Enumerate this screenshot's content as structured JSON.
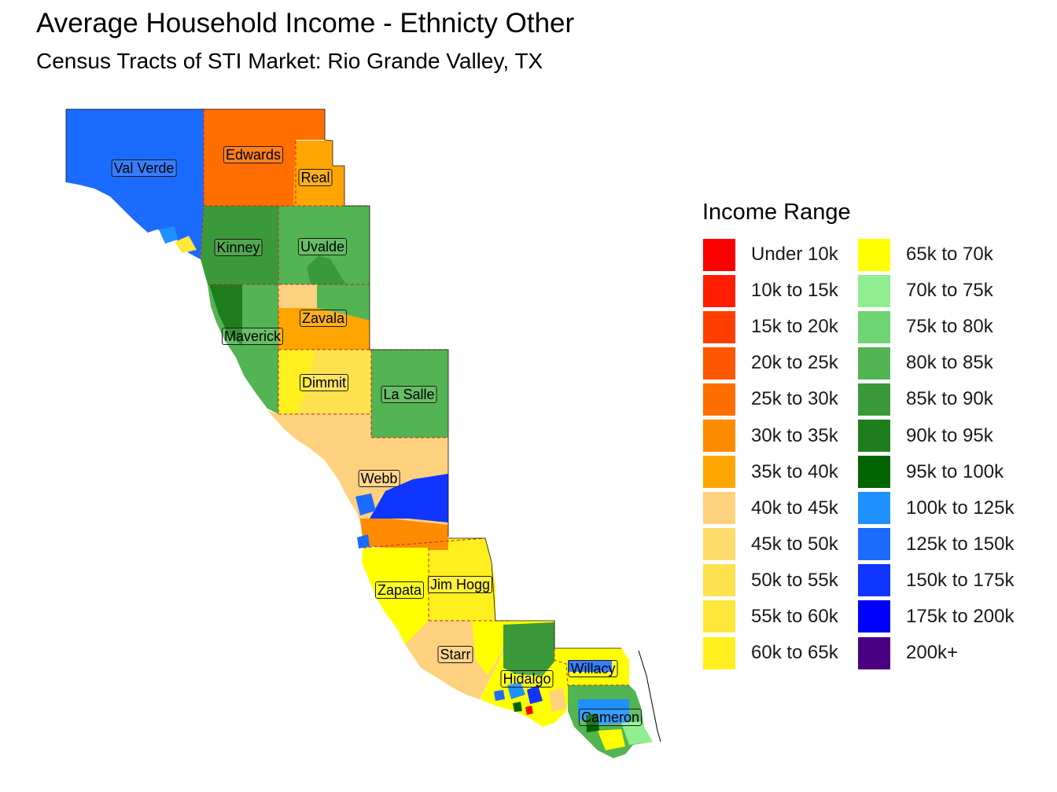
{
  "title": "Average Household Income - Ethnicty Other",
  "subtitle": "Census Tracts of STI Market: Rio Grande Valley, TX",
  "legend": {
    "title": "Income Range",
    "items": [
      {
        "label": "Under 10k",
        "color": "#FF0000"
      },
      {
        "label": "10k to 15k",
        "color": "#FF1F00"
      },
      {
        "label": "15k to 20k",
        "color": "#FF3F00"
      },
      {
        "label": "20k to 25k",
        "color": "#FF5600"
      },
      {
        "label": "25k to 30k",
        "color": "#FF6F00"
      },
      {
        "label": "30k to 35k",
        "color": "#FF8C00"
      },
      {
        "label": "35k to 40k",
        "color": "#FFA500"
      },
      {
        "label": "40k to 45k",
        "color": "#FED17F"
      },
      {
        "label": "45k to 50k",
        "color": "#FEDC6C"
      },
      {
        "label": "50k to 55k",
        "color": "#FEE14E"
      },
      {
        "label": "55k to 60k",
        "color": "#FFE63A"
      },
      {
        "label": "60k to 65k",
        "color": "#FFEF1F"
      },
      {
        "label": "65k to 70k",
        "color": "#FFFF00"
      },
      {
        "label": "70k to 75k",
        "color": "#90EE90"
      },
      {
        "label": "75k to 80k",
        "color": "#6FD472"
      },
      {
        "label": "80k to 85k",
        "color": "#52B452"
      },
      {
        "label": "85k to 90k",
        "color": "#3A9A3A"
      },
      {
        "label": "90k to 95k",
        "color": "#1E7E1E"
      },
      {
        "label": "95k to 100k",
        "color": "#006400"
      },
      {
        "label": "100k to 125k",
        "color": "#1E90FF"
      },
      {
        "label": "125k to 150k",
        "color": "#1C6BFF"
      },
      {
        "label": "150k to 175k",
        "color": "#1035FF"
      },
      {
        "label": "175k to 200k",
        "color": "#0000FF"
      },
      {
        "label": "200k+",
        "color": "#4B0082"
      }
    ]
  },
  "counties": [
    {
      "id": "val-verde",
      "name": "Val Verde",
      "income": "125k to 150k"
    },
    {
      "id": "edwards",
      "name": "Edwards",
      "income": "25k to 30k"
    },
    {
      "id": "real",
      "name": "Real",
      "income": "35k to 40k"
    },
    {
      "id": "kinney",
      "name": "Kinney",
      "income": "85k to 90k"
    },
    {
      "id": "uvalde",
      "name": "Uvalde",
      "income": "80k to 85k"
    },
    {
      "id": "maverick",
      "name": "Maverick",
      "income": "80k to 85k"
    },
    {
      "id": "zavala",
      "name": "Zavala",
      "income": "35k to 40k"
    },
    {
      "id": "dimmit",
      "name": "Dimmit",
      "income": "60k to 65k"
    },
    {
      "id": "la-salle",
      "name": "La Salle",
      "income": "80k to 85k"
    },
    {
      "id": "webb",
      "name": "Webb",
      "income": "40k to 45k"
    },
    {
      "id": "zapata",
      "name": "Zapata",
      "income": "65k to 70k"
    },
    {
      "id": "jim-hogg",
      "name": "Jim Hogg",
      "income": "60k to 65k"
    },
    {
      "id": "starr",
      "name": "Starr",
      "income": "40k to 45k"
    },
    {
      "id": "hidalgo",
      "name": "Hidalgo",
      "income": "65k to 70k"
    },
    {
      "id": "willacy",
      "name": "Willacy",
      "income": "65k to 70k"
    },
    {
      "id": "cameron",
      "name": "Cameron",
      "income": "80k to 85k"
    }
  ]
}
